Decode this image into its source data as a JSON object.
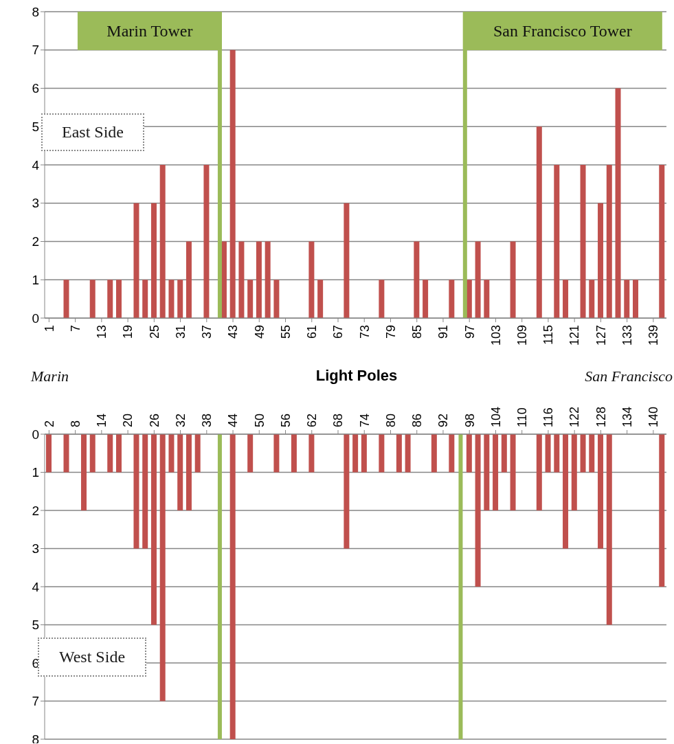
{
  "chart_data": [
    {
      "type": "bar",
      "xlabel": "Light Poles",
      "annotations": [
        "East Side",
        "Marin",
        "San Francisco"
      ],
      "x": [
        1,
        3,
        5,
        7,
        9,
        11,
        13,
        15,
        17,
        19,
        21,
        23,
        25,
        27,
        29,
        31,
        33,
        35,
        37,
        39,
        41,
        43,
        45,
        47,
        49,
        51,
        53,
        55,
        57,
        59,
        61,
        63,
        65,
        67,
        69,
        71,
        73,
        75,
        77,
        79,
        81,
        83,
        85,
        87,
        89,
        91,
        93,
        95,
        97,
        99,
        101,
        103,
        105,
        107,
        109,
        111,
        113,
        115,
        117,
        119,
        121,
        123,
        125,
        127,
        129,
        131,
        133,
        135,
        137,
        139,
        141
      ],
      "values": [
        0,
        0,
        1,
        0,
        0,
        1,
        0,
        1,
        1,
        0,
        3,
        1,
        3,
        4,
        1,
        1,
        2,
        0,
        4,
        0,
        2,
        7,
        2,
        1,
        2,
        2,
        1,
        0,
        0,
        0,
        2,
        1,
        0,
        0,
        3,
        0,
        0,
        0,
        1,
        0,
        0,
        0,
        2,
        1,
        0,
        0,
        1,
        0,
        1,
        2,
        1,
        0,
        0,
        2,
        0,
        0,
        5,
        0,
        4,
        1,
        0,
        4,
        1,
        3,
        4,
        6,
        1,
        1,
        0,
        0,
        4
      ],
      "color": "#c0504d",
      "xlim": [
        0,
        142
      ],
      "xticks": [
        1,
        7,
        13,
        19,
        25,
        31,
        37,
        43,
        49,
        55,
        61,
        67,
        73,
        79,
        85,
        91,
        97,
        103,
        109,
        115,
        121,
        127,
        133,
        139
      ],
      "ylim": [
        0,
        8
      ],
      "yticks": [
        0,
        1,
        2,
        3,
        4,
        5,
        6,
        7,
        8
      ],
      "grid": "y",
      "ref_lines": [
        {
          "axis": "x",
          "value": 40,
          "label": "Marin Tower",
          "color": "#9bbb59"
        },
        {
          "axis": "x",
          "value": 96,
          "label": "San Francisco Tower",
          "color": "#9bbb59"
        }
      ]
    },
    {
      "type": "bar",
      "annotations": [
        "West Side"
      ],
      "x": [
        2,
        4,
        6,
        8,
        10,
        12,
        14,
        16,
        18,
        20,
        22,
        24,
        26,
        28,
        30,
        32,
        34,
        36,
        38,
        40,
        42,
        44,
        46,
        48,
        50,
        52,
        54,
        56,
        58,
        60,
        62,
        64,
        66,
        68,
        70,
        72,
        74,
        76,
        78,
        80,
        82,
        84,
        86,
        88,
        90,
        92,
        94,
        96,
        98,
        100,
        102,
        104,
        106,
        108,
        110,
        112,
        114,
        116,
        118,
        120,
        122,
        124,
        126,
        128,
        130,
        132,
        134,
        136,
        138,
        140,
        142
      ],
      "values": [
        1,
        0,
        1,
        0,
        2,
        1,
        0,
        1,
        1,
        0,
        3,
        3,
        5,
        7,
        1,
        2,
        2,
        1,
        0,
        0,
        0,
        8,
        0,
        1,
        0,
        0,
        1,
        0,
        1,
        0,
        1,
        0,
        0,
        0,
        3,
        1,
        1,
        0,
        1,
        0,
        1,
        1,
        0,
        0,
        1,
        0,
        1,
        0,
        1,
        4,
        2,
        2,
        1,
        2,
        0,
        0,
        2,
        1,
        1,
        3,
        2,
        1,
        1,
        3,
        5,
        0,
        0,
        0,
        0,
        0,
        4
      ],
      "color": "#c0504d",
      "xlim": [
        1,
        143
      ],
      "xticks": [
        2,
        8,
        14,
        20,
        26,
        32,
        38,
        44,
        50,
        56,
        62,
        68,
        74,
        80,
        86,
        92,
        98,
        104,
        110,
        116,
        122,
        128,
        134,
        140
      ],
      "ylim": [
        8,
        0
      ],
      "yticks": [
        0,
        1,
        2,
        3,
        4,
        5,
        6,
        7,
        8
      ],
      "grid": "y",
      "ref_lines": [
        {
          "axis": "x",
          "value": 41,
          "color": "#9bbb59"
        },
        {
          "axis": "x",
          "value": 96,
          "color": "#9bbb59"
        }
      ]
    }
  ]
}
